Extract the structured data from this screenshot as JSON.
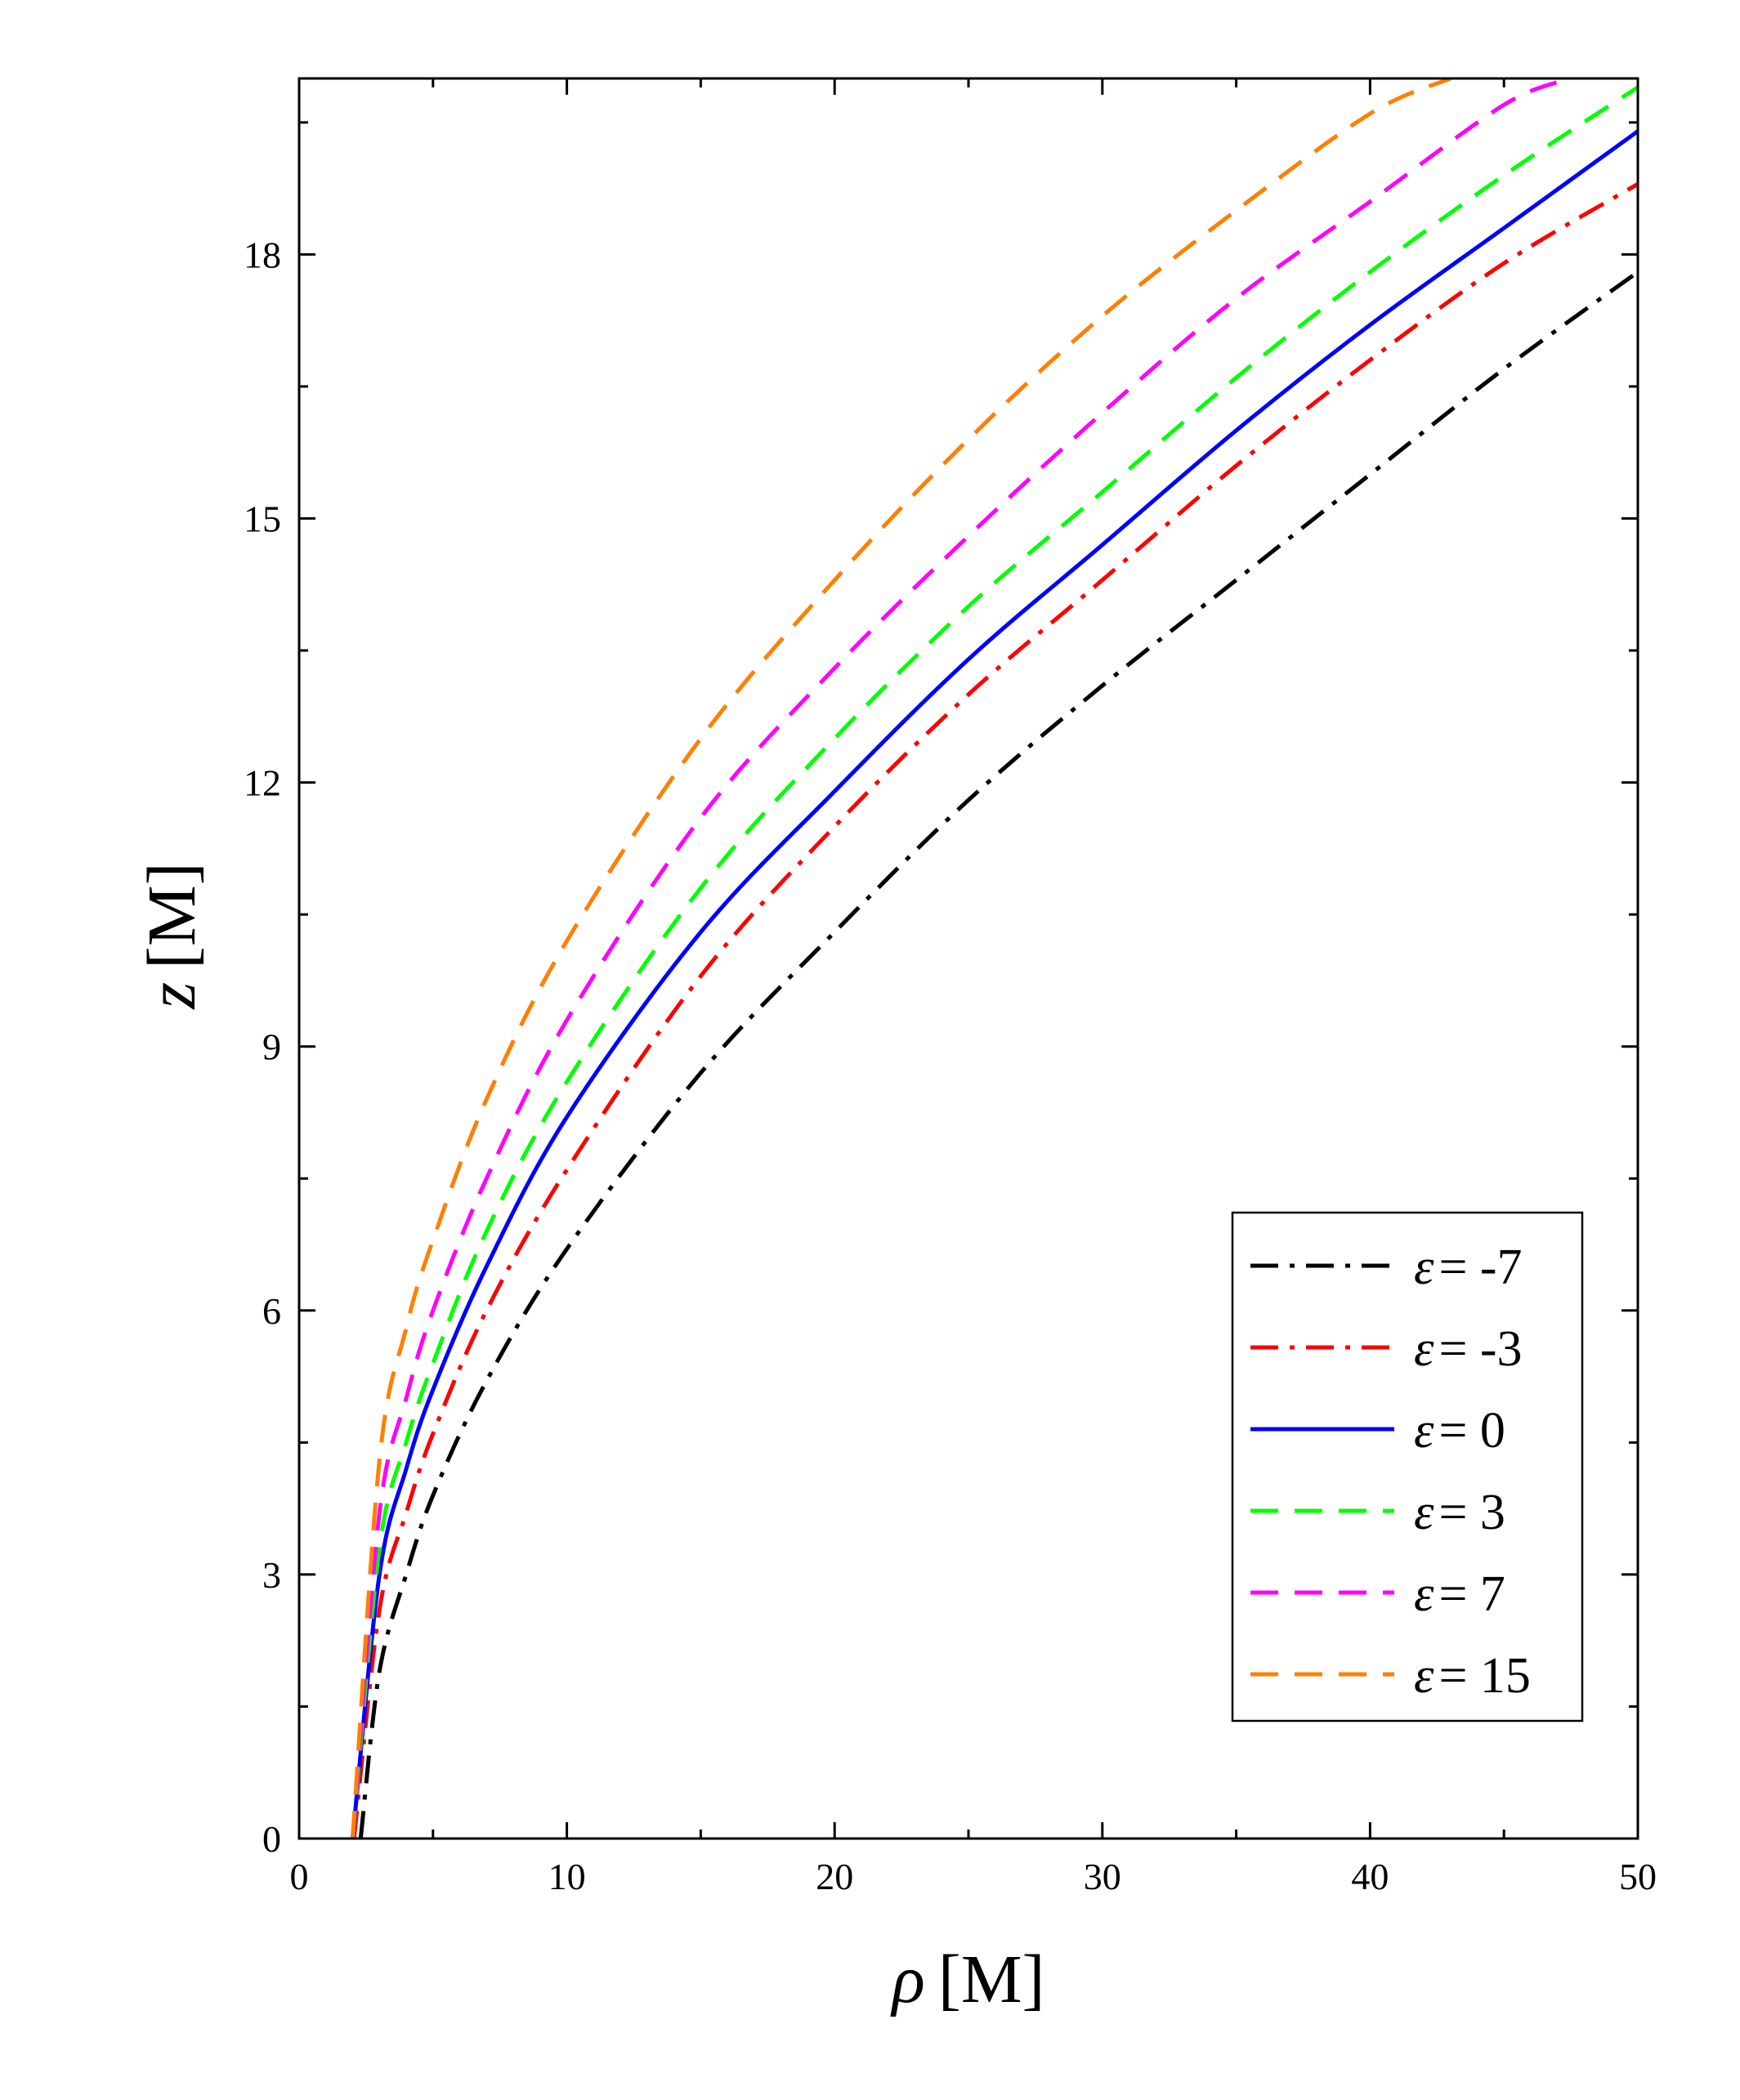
{
  "chart_data": {
    "type": "line",
    "title": "",
    "xlabel": {
      "symbol": "ρ",
      "unit": "[M]"
    },
    "ylabel": {
      "symbol": "z",
      "unit": "[M]"
    },
    "xlim": [
      0,
      50
    ],
    "ylim": [
      0,
      20
    ],
    "xticks": [
      0,
      10,
      20,
      30,
      40,
      50
    ],
    "yticks": [
      0,
      3,
      6,
      9,
      12,
      15,
      18
    ],
    "grid": false,
    "legend": {
      "position": "bottom-right",
      "symbol": "ε"
    },
    "series": [
      {
        "name": "= -7",
        "eps": -7,
        "color": "#000000",
        "style": "dashdot",
        "x": [
          2.3,
          3,
          4,
          5,
          7,
          10,
          15,
          20,
          25,
          30,
          35,
          40,
          45,
          50
        ],
        "y": [
          0,
          1.9,
          3.0,
          3.9,
          5.2,
          6.7,
          8.7,
          10.3,
          11.8,
          13.1,
          14.3,
          15.5,
          16.7,
          17.8
        ]
      },
      {
        "name": "= -3",
        "eps": -3,
        "color": "#ff0000",
        "style": "dashdot",
        "x": [
          2.05,
          3,
          4,
          5,
          7,
          10,
          15,
          20,
          25,
          30,
          35,
          40,
          45,
          50
        ],
        "y": [
          0,
          2.6,
          3.7,
          4.6,
          6.0,
          7.6,
          9.8,
          11.5,
          13.0,
          14.3,
          15.6,
          16.8,
          17.9,
          18.8
        ]
      },
      {
        "name": "= 0",
        "eps": 0,
        "color": "#0000ff",
        "style": "solid",
        "x": [
          2.0,
          3,
          4,
          5,
          7,
          10,
          15,
          20,
          25,
          30,
          35,
          40,
          45,
          50
        ],
        "y": [
          0,
          3.0,
          4.2,
          5.1,
          6.5,
          8.2,
          10.3,
          11.9,
          13.4,
          14.7,
          16.0,
          17.2,
          18.3,
          19.4
        ]
      },
      {
        "name": "= 3",
        "eps": 3,
        "color": "#00ff00",
        "style": "dashed",
        "x": [
          2.0,
          3,
          4,
          5,
          7,
          10,
          15,
          20,
          25,
          30,
          35,
          40,
          45,
          50
        ],
        "y": [
          0,
          3.3,
          4.5,
          5.4,
          6.9,
          8.6,
          10.8,
          12.5,
          14.0,
          15.3,
          16.6,
          17.8,
          18.9,
          19.9
        ]
      },
      {
        "name": "= 7",
        "eps": 7,
        "color": "#ff00ff",
        "style": "dashed",
        "x": [
          2.0,
          3,
          4,
          5,
          7,
          10,
          15,
          20,
          25,
          30,
          35,
          40,
          45,
          47.5
        ],
        "y": [
          0,
          3.7,
          5.0,
          6.0,
          7.5,
          9.3,
          11.6,
          13.3,
          14.8,
          16.2,
          17.5,
          18.6,
          19.7,
          20.0
        ]
      },
      {
        "name": "= 15",
        "eps": 15,
        "color": "#ff8000",
        "style": "dashed",
        "x": [
          2.0,
          3,
          4,
          5,
          7,
          10,
          15,
          20,
          25,
          30,
          35,
          40,
          43
        ],
        "y": [
          0,
          4.3,
          5.8,
          6.8,
          8.4,
          10.2,
          12.5,
          14.3,
          15.9,
          17.3,
          18.5,
          19.6,
          20.0
        ]
      }
    ]
  }
}
